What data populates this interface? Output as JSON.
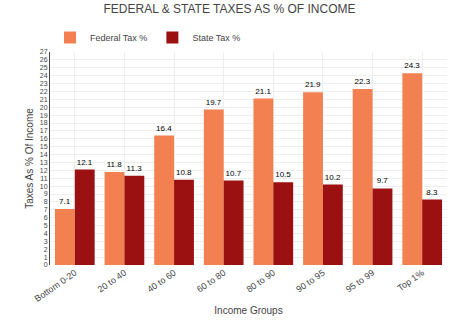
{
  "chart_data": {
    "type": "bar",
    "title": "FEDERAL & STATE TAXES AS % OF INCOME",
    "xlabel": "Income Groups",
    "ylabel": "Taxes As % Of Income",
    "categories": [
      "Bottom 0-20",
      "20 to 40",
      "40 to 60",
      "60 to 80",
      "80 to 90",
      "90 to 95",
      "95 to 99",
      "Top 1%"
    ],
    "series": [
      {
        "name": "Federal Tax %",
        "color": "#F28050",
        "values": [
          7.1,
          11.8,
          16.4,
          19.7,
          21.1,
          21.9,
          22.3,
          24.3
        ]
      },
      {
        "name": "State Tax %",
        "color": "#9B1010",
        "values": [
          12.1,
          11.3,
          10.8,
          10.7,
          10.5,
          10.2,
          9.7,
          8.3
        ]
      }
    ],
    "ylim": [
      0,
      27
    ],
    "yticks": [
      0,
      1,
      2,
      3,
      4,
      5,
      6,
      7,
      8,
      9,
      10,
      11,
      12,
      13,
      14,
      15,
      16,
      17,
      18,
      19,
      20,
      21,
      22,
      23,
      24,
      25,
      26,
      27
    ],
    "grid": true,
    "data_labels": true,
    "legend": "upper left"
  }
}
